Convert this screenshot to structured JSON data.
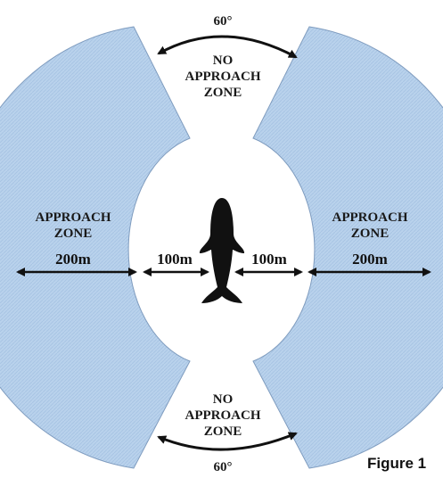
{
  "top_zone": {
    "angle": "60°",
    "lines": [
      "NO",
      "APPROACH",
      "ZONE"
    ]
  },
  "bottom_zone": {
    "angle": "60°",
    "lines": [
      "NO",
      "APPROACH",
      "ZONE"
    ]
  },
  "left_zone": {
    "lines": [
      "APPROACH",
      "ZONE"
    ],
    "distance": "200m"
  },
  "right_zone": {
    "lines": [
      "APPROACH",
      "ZONE"
    ],
    "distance": "200m"
  },
  "inner_left_distance": "100m",
  "inner_right_distance": "100m",
  "caption": "Figure 1"
}
